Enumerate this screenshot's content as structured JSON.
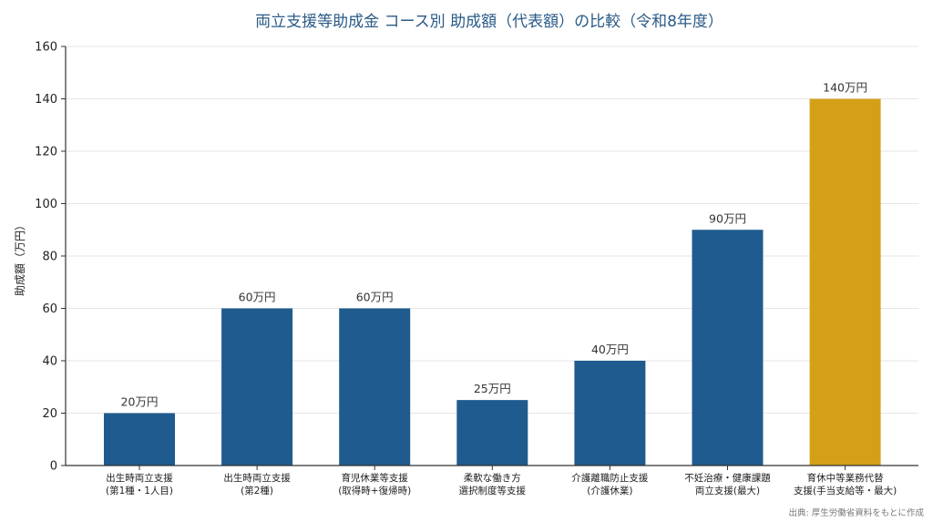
{
  "chart_data": {
    "type": "bar",
    "title": "両立支援等助成金 コース別 助成額（代表額）の比較（令和8年度）",
    "ylabel": "助成額（万円）",
    "xlabel": "",
    "ylim": [
      0,
      160
    ],
    "yticks": [
      0,
      20,
      40,
      60,
      80,
      100,
      120,
      140,
      160
    ],
    "grid": true,
    "categories": [
      [
        "出生時両立支援",
        "(第1種・1人目)"
      ],
      [
        "出生時両立支援",
        "(第2種)"
      ],
      [
        "育児休業等支援",
        "(取得時+復帰時)"
      ],
      [
        "柔軟な働き方",
        "選択制度等支援"
      ],
      [
        "介護離職防止支援",
        "(介護休業)"
      ],
      [
        "不妊治療・健康課題",
        "両立支援(最大)"
      ],
      [
        "育休中等業務代替",
        "支援(手当支給等・最大)"
      ]
    ],
    "values": [
      20,
      60,
      60,
      25,
      40,
      90,
      140
    ],
    "data_labels": [
      "20万円",
      "60万円",
      "60万円",
      "25万円",
      "40万円",
      "90万円",
      "140万円"
    ],
    "colors": [
      "#1f5b8e",
      "#1f5b8e",
      "#1f5b8e",
      "#1f5b8e",
      "#1f5b8e",
      "#1f5b8e",
      "#d4a017"
    ]
  },
  "source_note": "出典: 厚生労働省資料をもとに作成"
}
